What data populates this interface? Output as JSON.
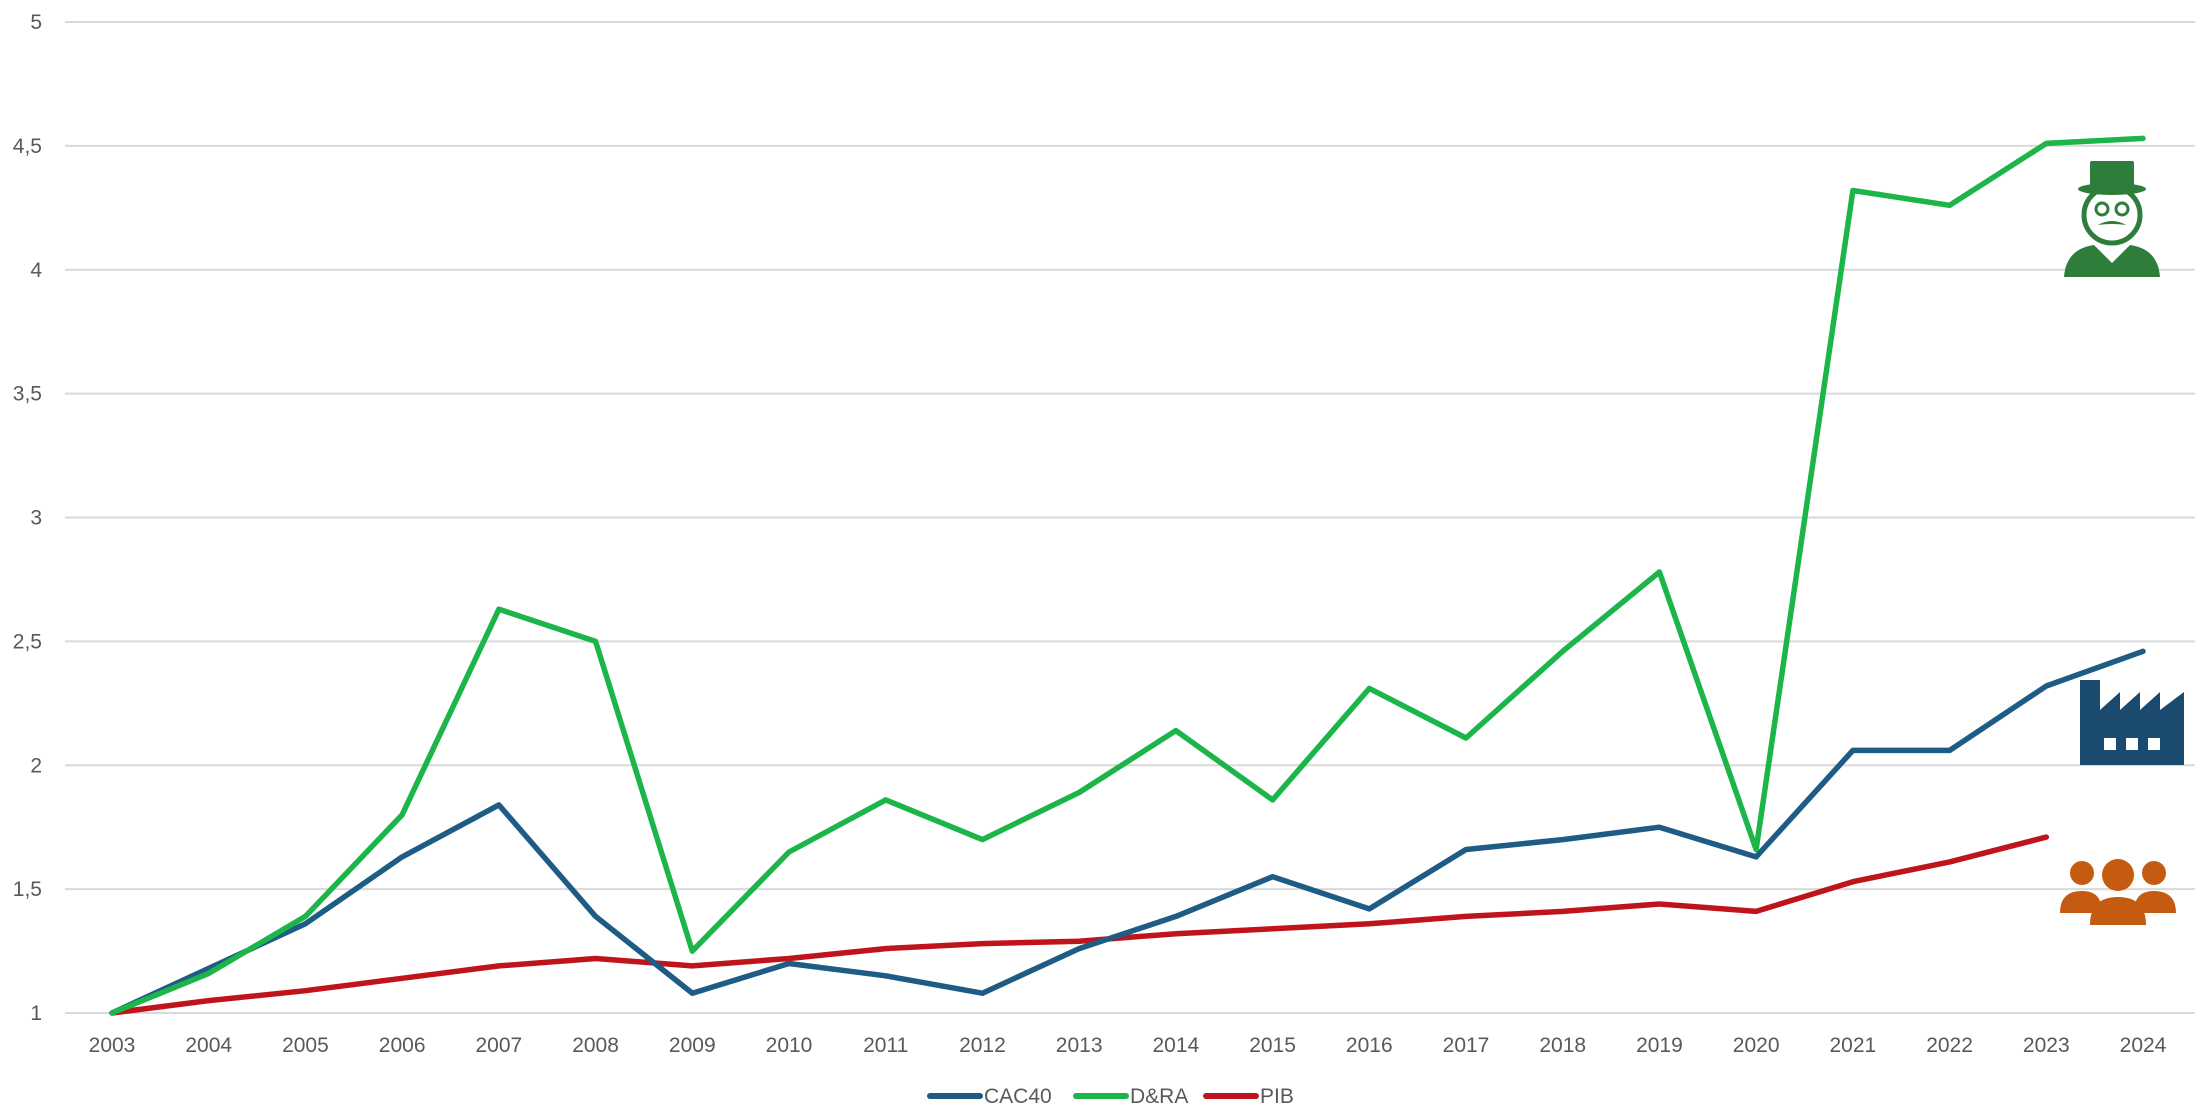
{
  "chart_data": {
    "type": "line",
    "title": "",
    "xlabel": "",
    "ylabel": "",
    "categories": [
      "2003",
      "2004",
      "2005",
      "2006",
      "2007",
      "2008",
      "2009",
      "2010",
      "2011",
      "2012",
      "2013",
      "2014",
      "2015",
      "2016",
      "2017",
      "2018",
      "2019",
      "2020",
      "2021",
      "2022",
      "2023",
      "2024"
    ],
    "ylim": [
      1,
      5
    ],
    "yticks": [
      1,
      1.5,
      2,
      2.5,
      3,
      3.5,
      4,
      4.5,
      5
    ],
    "ytick_labels": [
      "1",
      "1,5",
      "2",
      "2,5",
      "3",
      "3,5",
      "4",
      "4,5",
      "5"
    ],
    "grid": true,
    "legend_position": "bottom",
    "series": [
      {
        "name": "CAC40",
        "color": "#1f5c85",
        "icon": "factory-icon",
        "values": [
          1.0,
          1.18,
          1.36,
          1.63,
          1.84,
          1.39,
          1.08,
          1.2,
          1.15,
          1.08,
          1.26,
          1.39,
          1.55,
          1.42,
          1.66,
          1.7,
          1.75,
          1.63,
          2.06,
          2.06,
          2.32,
          2.46
        ]
      },
      {
        "name": "D&RA",
        "color": "#1cb54a",
        "icon": "top-hat-man-icon",
        "values": [
          1.0,
          1.16,
          1.39,
          1.8,
          2.63,
          2.5,
          1.25,
          1.65,
          1.86,
          1.7,
          1.89,
          2.14,
          1.86,
          2.31,
          2.11,
          2.46,
          2.78,
          1.66,
          4.32,
          4.26,
          4.51,
          4.53
        ]
      },
      {
        "name": "PIB",
        "color": "#c0141c",
        "icon": "people-group-icon",
        "values": [
          1.0,
          1.05,
          1.09,
          1.14,
          1.19,
          1.22,
          1.19,
          1.22,
          1.26,
          1.28,
          1.29,
          1.32,
          1.34,
          1.36,
          1.39,
          1.41,
          1.44,
          1.41,
          1.53,
          1.61,
          1.71,
          null
        ]
      }
    ]
  }
}
